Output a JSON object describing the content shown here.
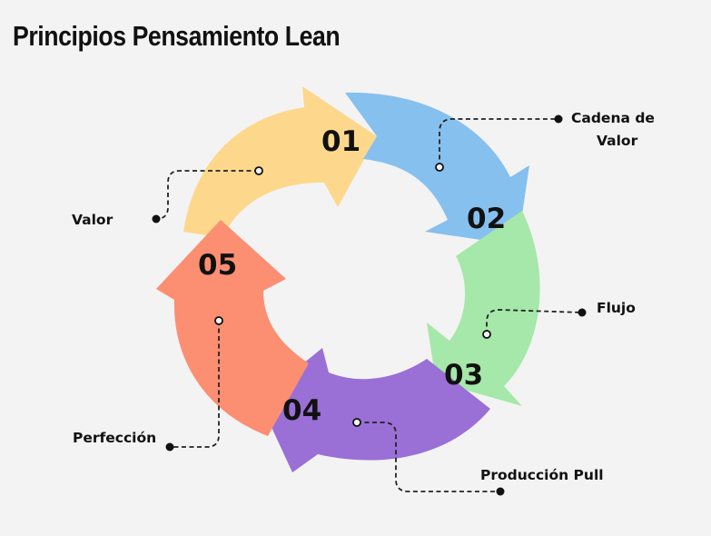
{
  "title": "Principios Pensamiento Lean",
  "steps": [
    {
      "number": "01",
      "label": "Valor",
      "color": "#fdd88c"
    },
    {
      "number": "02",
      "label": "Cadena de Valor",
      "label_lines": [
        "Cadena de",
        "Valor"
      ],
      "color": "#86c0ee"
    },
    {
      "number": "03",
      "label": "Flujo",
      "color": "#a5e8a9"
    },
    {
      "number": "04",
      "label": "Producción Pull",
      "color": "#9a6fd6"
    },
    {
      "number": "05",
      "label": "Perfección",
      "color": "#fc8e72"
    }
  ]
}
